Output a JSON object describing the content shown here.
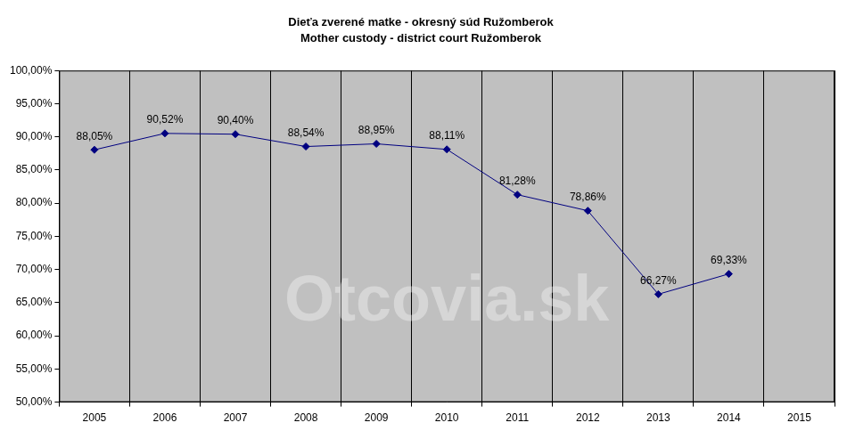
{
  "chart_data": {
    "type": "line",
    "title": "Dieťa zverené matke - okresný súd Ružomberok",
    "subtitle": "Mother custody - district court Ružomberok",
    "annotations": [
      "Otcovia.sk"
    ],
    "categories": [
      "2005",
      "2006",
      "2007",
      "2008",
      "2009",
      "2010",
      "2011",
      "2012",
      "2013",
      "2014",
      "2015"
    ],
    "values": [
      88.05,
      90.52,
      90.4,
      88.54,
      88.95,
      88.11,
      81.28,
      78.86,
      66.27,
      69.33,
      null
    ],
    "value_labels": [
      "88,05%",
      "90,52%",
      "90,40%",
      "88,54%",
      "88,95%",
      "88,11%",
      "81,28%",
      "78,86%",
      "66,27%",
      "69,33%",
      null
    ],
    "data_labels": true,
    "color": "#000080",
    "marker": "diamond",
    "grid": "x",
    "ylim": [
      50,
      100
    ],
    "yticks": [
      {
        "value": 50,
        "label": "50,00%"
      },
      {
        "value": 55,
        "label": "55,00%"
      },
      {
        "value": 60,
        "label": "60,00%"
      },
      {
        "value": 65,
        "label": "65,00%"
      },
      {
        "value": 70,
        "label": "70,00%"
      },
      {
        "value": 75,
        "label": "75,00%"
      },
      {
        "value": 80,
        "label": "80,00%"
      },
      {
        "value": 85,
        "label": "85,00%"
      },
      {
        "value": 90,
        "label": "90,00%"
      },
      {
        "value": 95,
        "label": "95,00%"
      },
      {
        "value": 100,
        "label": "100,00%"
      }
    ]
  }
}
